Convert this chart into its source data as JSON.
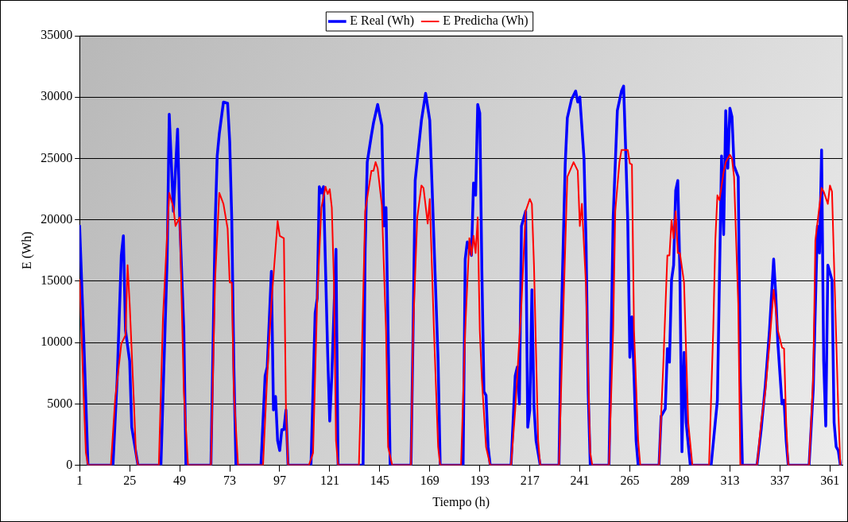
{
  "chart_data": {
    "type": "line",
    "xlabel": "Tiempo (h)",
    "ylabel": "E (Wh)",
    "xlim": [
      1,
      367
    ],
    "xticks": [
      1,
      25,
      49,
      73,
      97,
      121,
      145,
      169,
      193,
      217,
      241,
      265,
      289,
      313,
      337,
      361
    ],
    "ylim": [
      0,
      35000
    ],
    "yticks": [
      0,
      5000,
      10000,
      15000,
      20000,
      25000,
      30000,
      35000
    ],
    "grid": "y",
    "legend": "top",
    "marker": "none",
    "line_style": "solid",
    "series": [
      {
        "name": "E Real (Wh)",
        "color": "#0000ff",
        "x": [
          1,
          3,
          5,
          17,
          19,
          21,
          22,
          23,
          25,
          26,
          29,
          40,
          43,
          44,
          46,
          48,
          49,
          51,
          52,
          64,
          66,
          67,
          68,
          70,
          72,
          73,
          74,
          75,
          76,
          88,
          90,
          91,
          93,
          94,
          95,
          96,
          97,
          98,
          99,
          100,
          101,
          112,
          114,
          115,
          116,
          117,
          118,
          120,
          121,
          122,
          124,
          125,
          137,
          138,
          139,
          141,
          142,
          144,
          146,
          147,
          148,
          149,
          150,
          160,
          161,
          162,
          165,
          167,
          169,
          170,
          173,
          174,
          185,
          186,
          187,
          189,
          190,
          191,
          192,
          193,
          194,
          195,
          196,
          197,
          198,
          208,
          210,
          211,
          212,
          213,
          215,
          216,
          217,
          218,
          219,
          220,
          222,
          231,
          232,
          234,
          235,
          237,
          239,
          240,
          241,
          243,
          244,
          245,
          246,
          255,
          257,
          259,
          261,
          262,
          263,
          264,
          265,
          266,
          267,
          268,
          269,
          279,
          280,
          282,
          283,
          284,
          285,
          286,
          287,
          288,
          289,
          290,
          291,
          292,
          294,
          304,
          307,
          309,
          310,
          311,
          312,
          313,
          314,
          315,
          317,
          318,
          319,
          326,
          328,
          330,
          332,
          334,
          335,
          336,
          338,
          339,
          340,
          341,
          351,
          353,
          355,
          356,
          357,
          358,
          359,
          360,
          362,
          363,
          364,
          365,
          366
        ],
        "values": [
          19500,
          10200,
          0,
          0,
          7000,
          17100,
          18700,
          11000,
          8500,
          3100,
          0,
          0,
          16800,
          28600,
          20700,
          27400,
          20200,
          11000,
          0,
          0,
          19500,
          25200,
          27000,
          29600,
          29500,
          26400,
          20000,
          8000,
          0,
          0,
          7300,
          8000,
          15800,
          4500,
          5600,
          2000,
          1200,
          2900,
          2900,
          4500,
          0,
          0,
          12400,
          13600,
          22700,
          22200,
          22700,
          9200,
          3600,
          7300,
          17600,
          0,
          0,
          17600,
          24700,
          26900,
          27900,
          29400,
          27700,
          19500,
          21000,
          11000,
          0,
          0,
          11000,
          23200,
          28100,
          30300,
          28100,
          23200,
          8500,
          0,
          0,
          16800,
          18200,
          17100,
          23000,
          22000,
          29400,
          28700,
          15800,
          6000,
          5700,
          1500,
          0,
          0,
          7300,
          8000,
          5000,
          19500,
          20700,
          3100,
          4500,
          14300,
          4800,
          2000,
          0,
          0,
          11000,
          24600,
          28300,
          29800,
          30500,
          29600,
          30000,
          25000,
          18000,
          6000,
          0,
          0,
          20200,
          28900,
          30500,
          30900,
          25700,
          19800,
          8800,
          12100,
          7300,
          2000,
          0,
          0,
          4000,
          4600,
          9500,
          8400,
          15100,
          16300,
          22400,
          23200,
          15800,
          1100,
          9200,
          3500,
          0,
          0,
          5300,
          25200,
          18800,
          28900,
          24200,
          29100,
          28400,
          24400,
          23500,
          7000,
          0,
          0,
          2900,
          6500,
          11000,
          16800,
          13900,
          10000,
          5000,
          5300,
          2000,
          0,
          0,
          6200,
          19500,
          17300,
          25700,
          8500,
          3200,
          16300,
          15100,
          3500,
          1500,
          1200,
          0
        ]
      },
      {
        "name": "E Predicha (Wh)",
        "color": "#ff0000",
        "x": [
          1,
          3,
          4,
          5,
          16,
          18,
          21,
          23,
          24,
          25,
          27,
          28,
          29,
          39,
          41,
          44,
          46,
          47,
          49,
          51,
          53,
          64,
          66,
          68,
          70,
          72,
          73,
          74,
          75,
          77,
          89,
          91,
          93,
          96,
          97,
          99,
          100,
          101,
          111,
          113,
          115,
          117,
          119,
          120,
          121,
          122,
          123,
          124,
          125,
          135,
          136,
          138,
          141,
          142,
          143,
          144,
          146,
          148,
          149,
          151,
          160,
          161,
          163,
          165,
          166,
          168,
          169,
          171,
          173,
          174,
          184,
          186,
          188,
          189,
          190,
          191,
          192,
          193,
          194,
          196,
          198,
          208,
          210,
          213,
          215,
          217,
          218,
          219,
          221,
          222,
          231,
          233,
          235,
          238,
          240,
          241,
          242,
          244,
          245,
          246,
          247,
          255,
          257,
          258,
          260,
          261,
          264,
          265,
          266,
          267,
          269,
          270,
          279,
          281,
          283,
          284,
          285,
          286,
          287,
          288,
          289,
          291,
          293,
          295,
          303,
          305,
          306,
          307,
          308,
          310,
          311,
          313,
          314,
          315,
          317,
          318,
          326,
          328,
          330,
          332,
          334,
          336,
          338,
          339,
          340,
          341,
          351,
          353,
          354,
          357,
          358,
          360,
          361,
          362,
          363,
          365,
          366
        ],
        "values": [
          15100,
          5300,
          1000,
          0,
          0,
          5300,
          9900,
          10600,
          16300,
          13200,
          5300,
          1000,
          0,
          0,
          12100,
          22200,
          21000,
          19500,
          20200,
          6000,
          0,
          0,
          15100,
          22200,
          21300,
          19300,
          14900,
          14900,
          6000,
          0,
          0,
          7300,
          13200,
          19900,
          18700,
          18500,
          4500,
          0,
          0,
          1000,
          13600,
          21000,
          22700,
          22100,
          22500,
          21000,
          15000,
          2000,
          0,
          0,
          6000,
          20700,
          24000,
          24000,
          24700,
          24200,
          21200,
          11000,
          1500,
          0,
          0,
          11000,
          20200,
          22800,
          22600,
          19700,
          21700,
          11000,
          1500,
          0,
          0,
          11000,
          18500,
          17100,
          18700,
          17300,
          20200,
          11000,
          7000,
          1500,
          0,
          0,
          4500,
          13200,
          20700,
          21700,
          21300,
          16300,
          2000,
          0,
          0,
          12100,
          23500,
          24700,
          24000,
          19500,
          21300,
          14500,
          7300,
          1000,
          0,
          0,
          11000,
          20700,
          24700,
          25700,
          25700,
          24600,
          24500,
          11000,
          2000,
          0,
          0,
          8000,
          17100,
          17100,
          20000,
          18500,
          20700,
          17300,
          17300,
          14900,
          3500,
          0,
          0,
          11000,
          18300,
          22000,
          21600,
          23900,
          24700,
          25300,
          25000,
          23500,
          13200,
          0,
          0,
          3500,
          6000,
          9900,
          14300,
          11000,
          9600,
          9500,
          3500,
          0,
          0,
          7300,
          18300,
          22600,
          22300,
          21300,
          22800,
          22300,
          16300,
          4500,
          0
        ]
      }
    ]
  }
}
